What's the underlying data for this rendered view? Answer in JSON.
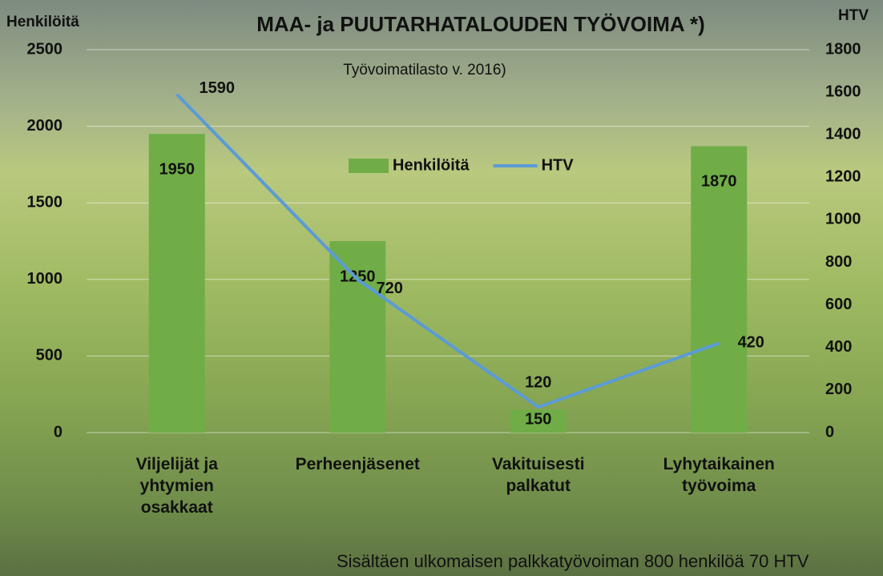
{
  "chart_data": {
    "type": "bar",
    "title": "MAA- ja PUUTARHATALOUDEN TYÖVOIMA *)",
    "subtitle": "Työvoimatilasto v. 2016)",
    "footnote": "Sisältäen ulkomaisen palkkatyövoiman 800 henkilöä 70 HTV",
    "y_label": "Henkilöitä",
    "y2_label": "HTV",
    "categories": [
      "Viljelijät ja yhtymien osakkaat",
      "Perheenjäsenet",
      "Vakituisesti palkatut",
      "Lyhytaikainen työvoima"
    ],
    "series": [
      {
        "name": "Henkilöitä",
        "type": "bar",
        "color": "#70ad47",
        "values": [
          1950,
          1250,
          150,
          1870
        ]
      },
      {
        "name": "HTV",
        "type": "line",
        "axis": "y2",
        "color": "#5b9bd5",
        "values": [
          1590,
          720,
          120,
          420
        ]
      }
    ],
    "ylim": [
      0,
      2500
    ],
    "yticks": [
      0,
      500,
      1000,
      1500,
      2000,
      2500
    ],
    "y2lim": [
      0,
      1800
    ],
    "y2ticks": [
      0,
      200,
      400,
      600,
      800,
      1000,
      1200,
      1400,
      1600,
      1800
    ],
    "grid": true
  }
}
